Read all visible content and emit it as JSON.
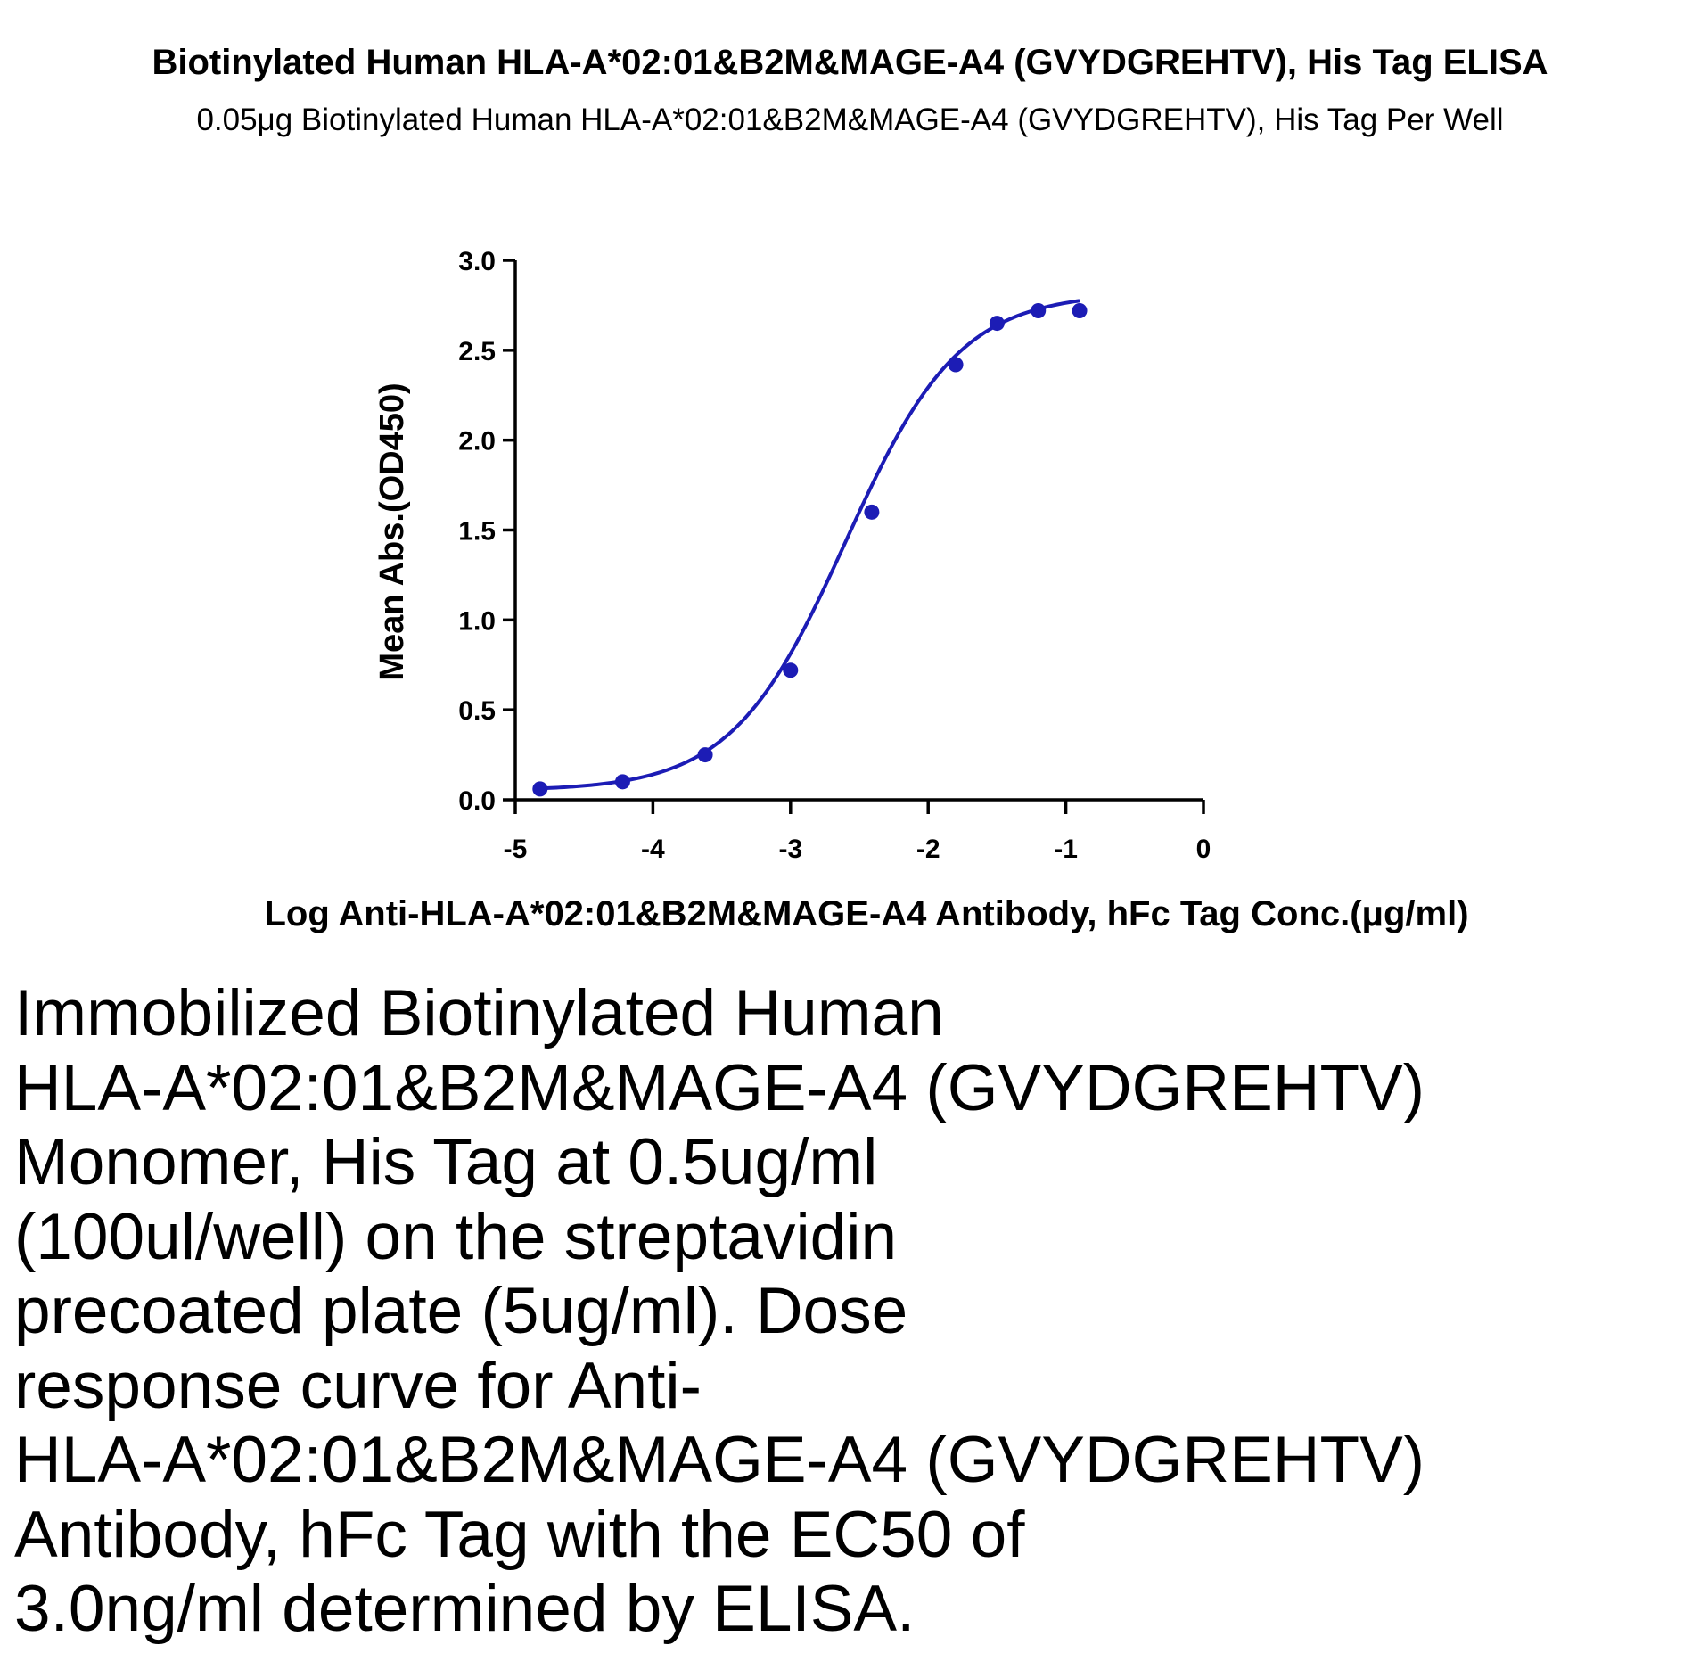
{
  "header": {
    "title": "Biotinylated Human HLA-A*02:01&B2M&MAGE-A4 (GVYDGREHTV), His Tag ELISA",
    "subtitle": "0.05μg Biotinylated Human HLA-A*02:01&B2M&MAGE-A4 (GVYDGREHTV), His Tag Per Well"
  },
  "chart_data": {
    "type": "scatter",
    "title": "Biotinylated Human HLA-A*02:01&B2M&MAGE-A4 (GVYDGREHTV), His Tag ELISA",
    "subtitle": "0.05μg Biotinylated Human HLA-A*02:01&B2M&MAGE-A4 (GVYDGREHTV), His Tag Per Well",
    "xlabel": "Log Anti-HLA-A*02:01&B2M&MAGE-A4 Antibody, hFc  Tag Conc.(μg/ml)",
    "ylabel": "Mean Abs.(OD450)",
    "xlim": [
      -5,
      0
    ],
    "ylim": [
      0,
      3
    ],
    "x_ticks": [
      "-5",
      "-4",
      "-3",
      "-2",
      "-1",
      "0"
    ],
    "y_ticks": [
      "0.0",
      "0.5",
      "1.0",
      "1.5",
      "2.0",
      "2.5",
      "3.0"
    ],
    "grid": false,
    "series": [
      {
        "color": "#1c1cb5",
        "x": [
          -4.82,
          -4.22,
          -3.62,
          -3.0,
          -2.41,
          -1.8,
          -1.5,
          -1.2,
          -0.9
        ],
        "y": [
          0.06,
          0.1,
          0.25,
          0.72,
          1.6,
          2.42,
          2.65,
          2.72,
          2.72
        ],
        "fit_curve": "four-parameter logistic"
      }
    ]
  },
  "caption": {
    "text": "Immobilized Biotinylated Human\nHLA-A*02:01&B2M&MAGE-A4 (GVYDGREHTV)\nMonomer, His Tag at 0.5ug/ml\n(100ul/well) on the streptavidin\nprecoated plate (5ug/ml). Dose\nresponse curve for Anti-\nHLA-A*02:01&B2M&MAGE-A4 (GVYDGREHTV)\nAntibody, hFc Tag with the EC50 of\n3.0ng/ml determined by ELISA."
  }
}
